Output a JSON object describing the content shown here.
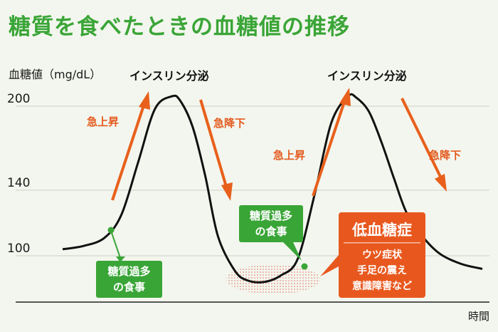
{
  "title": "糖質を食べたときの血糖値の推移",
  "chart_data": {
    "type": "line",
    "title": "糖質を食べたときの血糖値の推移",
    "ylabel": "血糖値（mg/dL）",
    "xlabel": "時間",
    "yticks": [
      200,
      140,
      100
    ],
    "ylim": [
      75,
      210
    ],
    "grid": "horizontal",
    "curve_color": "#111111",
    "accent_colors": {
      "arrow": "#e8601c",
      "meal_box": "#3aa537",
      "hypo_box": "#e8581e",
      "title": "#3aa537"
    },
    "x_domain": [
      0,
      100
    ],
    "series": [
      {
        "x": [
          0,
          5,
          10,
          14,
          18,
          22,
          26,
          28,
          31,
          34,
          37,
          41,
          44,
          48,
          52,
          56,
          60,
          64,
          68,
          70,
          73,
          76,
          79,
          82,
          86,
          90,
          95,
          100
        ],
        "values": [
          104,
          106,
          111,
          125,
          160,
          198,
          207,
          204,
          185,
          150,
          112,
          91,
          85,
          84,
          88,
          98,
          137,
          188,
          207,
          206,
          196,
          174,
          148,
          126,
          111,
          101,
          95,
          92
        ]
      }
    ],
    "annotations": {
      "insulin_1": "インスリン分泌",
      "insulin_2": "インスリン分泌",
      "rise_1": "急上昇",
      "rise_2": "急上昇",
      "drop_1": "急降下",
      "drop_2": "急降下",
      "meal_1": [
        "糖質過多",
        "の食事"
      ],
      "meal_2": [
        "糖質過多",
        "の食事"
      ],
      "hypo_title": "低血糖症",
      "hypo_lines": [
        "ウツ症状",
        "手足の震え",
        "意識障害など"
      ]
    }
  }
}
